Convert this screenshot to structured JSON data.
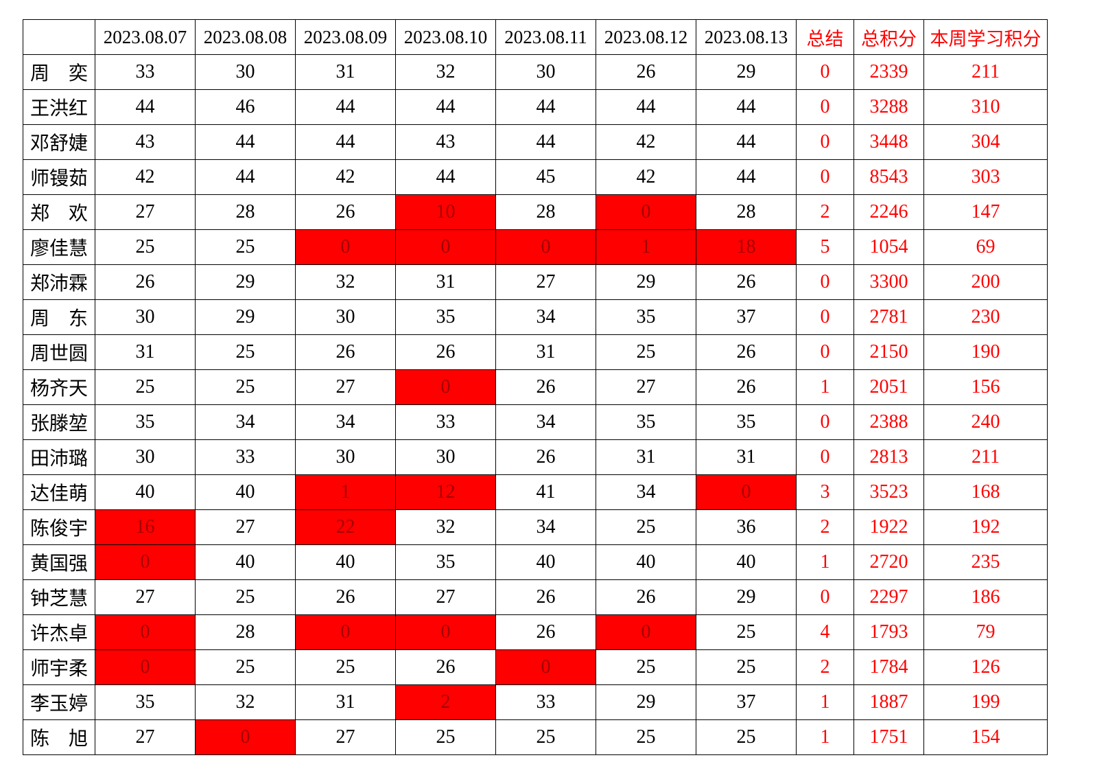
{
  "colors": {
    "accent_red": "#ff0000",
    "flag_cell_background": "#ff0000",
    "flag_cell_text": "#a40000",
    "grid_border": "#000000"
  },
  "table": {
    "corner_label": "",
    "columns": [
      {
        "label": "2023.08.07",
        "red": false
      },
      {
        "label": "2023.08.08",
        "red": false
      },
      {
        "label": "2023.08.09",
        "red": false
      },
      {
        "label": "2023.08.10",
        "red": false
      },
      {
        "label": "2023.08.11",
        "red": false
      },
      {
        "label": "2023.08.12",
        "red": false
      },
      {
        "label": "2023.08.13",
        "red": false
      },
      {
        "label": "总结",
        "red": true
      },
      {
        "label": "总积分",
        "red": true
      },
      {
        "label": "本周学习积分",
        "red": true
      }
    ],
    "rows": [
      {
        "name": "周　奕",
        "days": [
          {
            "v": "33",
            "flag": false
          },
          {
            "v": "30",
            "flag": false
          },
          {
            "v": "31",
            "flag": false
          },
          {
            "v": "32",
            "flag": false
          },
          {
            "v": "30",
            "flag": false
          },
          {
            "v": "26",
            "flag": false
          },
          {
            "v": "29",
            "flag": false
          }
        ],
        "summary": "0",
        "total": "2339",
        "week": "211"
      },
      {
        "name": "王洪红",
        "days": [
          {
            "v": "44",
            "flag": false
          },
          {
            "v": "46",
            "flag": false
          },
          {
            "v": "44",
            "flag": false
          },
          {
            "v": "44",
            "flag": false
          },
          {
            "v": "44",
            "flag": false
          },
          {
            "v": "44",
            "flag": false
          },
          {
            "v": "44",
            "flag": false
          }
        ],
        "summary": "0",
        "total": "3288",
        "week": "310"
      },
      {
        "name": "邓舒婕",
        "days": [
          {
            "v": "43",
            "flag": false
          },
          {
            "v": "44",
            "flag": false
          },
          {
            "v": "44",
            "flag": false
          },
          {
            "v": "43",
            "flag": false
          },
          {
            "v": "44",
            "flag": false
          },
          {
            "v": "42",
            "flag": false
          },
          {
            "v": "44",
            "flag": false
          }
        ],
        "summary": "0",
        "total": "3448",
        "week": "304"
      },
      {
        "name": "师镘茹",
        "days": [
          {
            "v": "42",
            "flag": false
          },
          {
            "v": "44",
            "flag": false
          },
          {
            "v": "42",
            "flag": false
          },
          {
            "v": "44",
            "flag": false
          },
          {
            "v": "45",
            "flag": false
          },
          {
            "v": "42",
            "flag": false
          },
          {
            "v": "44",
            "flag": false
          }
        ],
        "summary": "0",
        "total": "8543",
        "week": "303"
      },
      {
        "name": "郑　欢",
        "days": [
          {
            "v": "27",
            "flag": false
          },
          {
            "v": "28",
            "flag": false
          },
          {
            "v": "26",
            "flag": false
          },
          {
            "v": "10",
            "flag": true
          },
          {
            "v": "28",
            "flag": false
          },
          {
            "v": "0",
            "flag": true
          },
          {
            "v": "28",
            "flag": false
          }
        ],
        "summary": "2",
        "total": "2246",
        "week": "147"
      },
      {
        "name": "廖佳慧",
        "days": [
          {
            "v": "25",
            "flag": false
          },
          {
            "v": "25",
            "flag": false
          },
          {
            "v": "0",
            "flag": true
          },
          {
            "v": "0",
            "flag": true
          },
          {
            "v": "0",
            "flag": true
          },
          {
            "v": "1",
            "flag": true
          },
          {
            "v": "18",
            "flag": true
          }
        ],
        "summary": "5",
        "total": "1054",
        "week": "69"
      },
      {
        "name": "郑沛霖",
        "days": [
          {
            "v": "26",
            "flag": false
          },
          {
            "v": "29",
            "flag": false
          },
          {
            "v": "32",
            "flag": false
          },
          {
            "v": "31",
            "flag": false
          },
          {
            "v": "27",
            "flag": false
          },
          {
            "v": "29",
            "flag": false
          },
          {
            "v": "26",
            "flag": false
          }
        ],
        "summary": "0",
        "total": "3300",
        "week": "200"
      },
      {
        "name": "周　东",
        "days": [
          {
            "v": "30",
            "flag": false
          },
          {
            "v": "29",
            "flag": false
          },
          {
            "v": "30",
            "flag": false
          },
          {
            "v": "35",
            "flag": false
          },
          {
            "v": "34",
            "flag": false
          },
          {
            "v": "35",
            "flag": false
          },
          {
            "v": "37",
            "flag": false
          }
        ],
        "summary": "0",
        "total": "2781",
        "week": "230"
      },
      {
        "name": "周世圆",
        "days": [
          {
            "v": "31",
            "flag": false
          },
          {
            "v": "25",
            "flag": false
          },
          {
            "v": "26",
            "flag": false
          },
          {
            "v": "26",
            "flag": false
          },
          {
            "v": "31",
            "flag": false
          },
          {
            "v": "25",
            "flag": false
          },
          {
            "v": "26",
            "flag": false
          }
        ],
        "summary": "0",
        "total": "2150",
        "week": "190"
      },
      {
        "name": "杨齐天",
        "days": [
          {
            "v": "25",
            "flag": false
          },
          {
            "v": "25",
            "flag": false
          },
          {
            "v": "27",
            "flag": false
          },
          {
            "v": "0",
            "flag": true
          },
          {
            "v": "26",
            "flag": false
          },
          {
            "v": "27",
            "flag": false
          },
          {
            "v": "26",
            "flag": false
          }
        ],
        "summary": "1",
        "total": "2051",
        "week": "156"
      },
      {
        "name": "张滕堃",
        "days": [
          {
            "v": "35",
            "flag": false
          },
          {
            "v": "34",
            "flag": false
          },
          {
            "v": "34",
            "flag": false
          },
          {
            "v": "33",
            "flag": false
          },
          {
            "v": "34",
            "flag": false
          },
          {
            "v": "35",
            "flag": false
          },
          {
            "v": "35",
            "flag": false
          }
        ],
        "summary": "0",
        "total": "2388",
        "week": "240"
      },
      {
        "name": "田沛璐",
        "days": [
          {
            "v": "30",
            "flag": false
          },
          {
            "v": "33",
            "flag": false
          },
          {
            "v": "30",
            "flag": false
          },
          {
            "v": "30",
            "flag": false
          },
          {
            "v": "26",
            "flag": false
          },
          {
            "v": "31",
            "flag": false
          },
          {
            "v": "31",
            "flag": false
          }
        ],
        "summary": "0",
        "total": "2813",
        "week": "211"
      },
      {
        "name": "达佳萌",
        "days": [
          {
            "v": "40",
            "flag": false
          },
          {
            "v": "40",
            "flag": false
          },
          {
            "v": "1",
            "flag": true
          },
          {
            "v": "12",
            "flag": true
          },
          {
            "v": "41",
            "flag": false
          },
          {
            "v": "34",
            "flag": false
          },
          {
            "v": "0",
            "flag": true
          }
        ],
        "summary": "3",
        "total": "3523",
        "week": "168"
      },
      {
        "name": "陈俊宇",
        "days": [
          {
            "v": "16",
            "flag": true
          },
          {
            "v": "27",
            "flag": false
          },
          {
            "v": "22",
            "flag": true
          },
          {
            "v": "32",
            "flag": false
          },
          {
            "v": "34",
            "flag": false
          },
          {
            "v": "25",
            "flag": false
          },
          {
            "v": "36",
            "flag": false
          }
        ],
        "summary": "2",
        "total": "1922",
        "week": "192"
      },
      {
        "name": "黄国强",
        "days": [
          {
            "v": "0",
            "flag": true
          },
          {
            "v": "40",
            "flag": false
          },
          {
            "v": "40",
            "flag": false
          },
          {
            "v": "35",
            "flag": false
          },
          {
            "v": "40",
            "flag": false
          },
          {
            "v": "40",
            "flag": false
          },
          {
            "v": "40",
            "flag": false
          }
        ],
        "summary": "1",
        "total": "2720",
        "week": "235"
      },
      {
        "name": "钟芝慧",
        "days": [
          {
            "v": "27",
            "flag": false
          },
          {
            "v": "25",
            "flag": false
          },
          {
            "v": "26",
            "flag": false
          },
          {
            "v": "27",
            "flag": false
          },
          {
            "v": "26",
            "flag": false
          },
          {
            "v": "26",
            "flag": false
          },
          {
            "v": "29",
            "flag": false
          }
        ],
        "summary": "0",
        "total": "2297",
        "week": "186"
      },
      {
        "name": "许杰卓",
        "days": [
          {
            "v": "0",
            "flag": true
          },
          {
            "v": "28",
            "flag": false
          },
          {
            "v": "0",
            "flag": true
          },
          {
            "v": "0",
            "flag": true
          },
          {
            "v": "26",
            "flag": false
          },
          {
            "v": "0",
            "flag": true
          },
          {
            "v": "25",
            "flag": false
          }
        ],
        "summary": "4",
        "total": "1793",
        "week": "79"
      },
      {
        "name": "师宇柔",
        "days": [
          {
            "v": "0",
            "flag": true
          },
          {
            "v": "25",
            "flag": false
          },
          {
            "v": "25",
            "flag": false
          },
          {
            "v": "26",
            "flag": false
          },
          {
            "v": "0",
            "flag": true
          },
          {
            "v": "25",
            "flag": false
          },
          {
            "v": "25",
            "flag": false
          }
        ],
        "summary": "2",
        "total": "1784",
        "week": "126"
      },
      {
        "name": "李玉婷",
        "days": [
          {
            "v": "35",
            "flag": false
          },
          {
            "v": "32",
            "flag": false
          },
          {
            "v": "31",
            "flag": false
          },
          {
            "v": "2",
            "flag": true
          },
          {
            "v": "33",
            "flag": false
          },
          {
            "v": "29",
            "flag": false
          },
          {
            "v": "37",
            "flag": false
          }
        ],
        "summary": "1",
        "total": "1887",
        "week": "199"
      },
      {
        "name": "陈　旭",
        "days": [
          {
            "v": "27",
            "flag": false
          },
          {
            "v": "0",
            "flag": true
          },
          {
            "v": "27",
            "flag": false
          },
          {
            "v": "25",
            "flag": false
          },
          {
            "v": "25",
            "flag": false
          },
          {
            "v": "25",
            "flag": false
          },
          {
            "v": "25",
            "flag": false
          }
        ],
        "summary": "1",
        "total": "1751",
        "week": "154"
      }
    ]
  }
}
